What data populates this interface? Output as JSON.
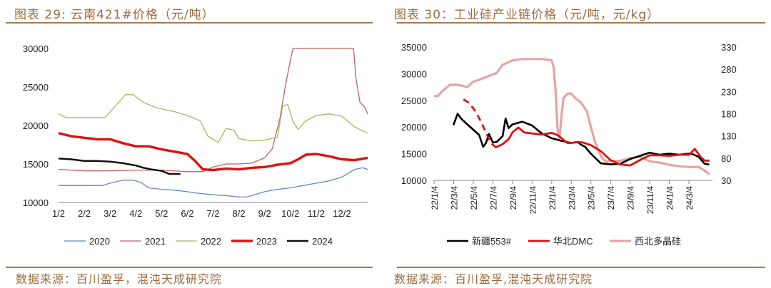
{
  "page": {
    "left_title": "图表 29:  云南421#价格（元/吨）",
    "right_title": "图表 30：工业硅产业链价格（元/吨，元/kg）",
    "left_source": "数据来源：百川盈孚，混沌天成研究院",
    "right_source": "数据来源：百川盈孚,混沌天成研究院"
  },
  "chart_data": [
    {
      "type": "line",
      "title": "云南421#价格（元/吨）",
      "x_labels": [
        "1/2",
        "2/2",
        "3/2",
        "4/2",
        "5/2",
        "6/2",
        "7/2",
        "8/2",
        "9/2",
        "10/2",
        "11/2",
        "12/2"
      ],
      "x_range": [
        0,
        12.0
      ],
      "ylim": [
        10000,
        30000
      ],
      "y_ticks": [
        10000,
        15000,
        20000,
        25000,
        30000
      ],
      "grid": false,
      "legend_position": "bottom",
      "colors": {
        "2020": "#5b8bc9",
        "2021": "#c06060",
        "2022": "#9cbc5c",
        "2023": "#e01010",
        "2024": "#111111"
      },
      "series": [
        {
          "name": "2020",
          "width": 1.3,
          "x": [
            0,
            1.7,
            2,
            2.5,
            2.9,
            3.2,
            3.5,
            4,
            4.5,
            5,
            5.4,
            6,
            6.5,
            7,
            7.3,
            7.6,
            8,
            8.5,
            9,
            9.5,
            10,
            10.5,
            11,
            11.5,
            11.8,
            12.0
          ],
          "y": [
            12200,
            12200,
            12500,
            12900,
            12900,
            12600,
            11900,
            11700,
            11600,
            11400,
            11200,
            11000,
            10900,
            10700,
            10700,
            11000,
            11400,
            11700,
            11900,
            12200,
            12500,
            12800,
            13300,
            14300,
            14500,
            14300
          ]
        },
        {
          "name": "2021",
          "width": 1.3,
          "x": [
            0,
            1,
            2,
            3,
            4,
            5,
            5.6,
            6,
            6.5,
            7,
            7.5,
            8,
            8.3,
            8.6,
            8.8,
            9,
            9.1,
            9.2,
            9.35,
            11.45,
            11.55,
            11.7,
            11.9,
            12.0
          ],
          "y": [
            14300,
            14100,
            14100,
            14200,
            14200,
            14000,
            14000,
            14600,
            15000,
            15000,
            15100,
            15800,
            17000,
            21000,
            25000,
            28500,
            30000,
            30000,
            30000,
            30000,
            26000,
            23000,
            22300,
            21500
          ]
        },
        {
          "name": "2022",
          "width": 1.3,
          "x": [
            0,
            0.3,
            1,
            1.8,
            2.2,
            2.6,
            2.9,
            3.3,
            3.8,
            4.5,
            5,
            5.5,
            5.8,
            6.2,
            6.5,
            6.8,
            7,
            7.5,
            8,
            8.5,
            8.7,
            8.9,
            9.1,
            9.3,
            9.6,
            10,
            10.5,
            11,
            11.5,
            12.0
          ],
          "y": [
            21500,
            21000,
            21000,
            21000,
            22500,
            24000,
            24000,
            23000,
            22300,
            21800,
            21300,
            20600,
            18600,
            17800,
            19600,
            19400,
            18300,
            18000,
            18100,
            18500,
            22500,
            22700,
            20500,
            19500,
            20600,
            21300,
            21500,
            21200,
            19800,
            19000
          ]
        },
        {
          "name": "2023",
          "width": 3.4,
          "x": [
            0,
            0.5,
            1,
            1.5,
            2,
            2.5,
            3,
            3.5,
            4,
            4.5,
            5,
            5.3,
            5.6,
            6,
            6.5,
            7,
            7.5,
            8,
            8.5,
            9,
            9.3,
            9.6,
            10,
            10.5,
            11,
            11.5,
            12.0
          ],
          "y": [
            19000,
            18600,
            18400,
            18200,
            18200,
            17700,
            17300,
            17300,
            16900,
            16600,
            16300,
            15400,
            14300,
            14200,
            14400,
            14300,
            14500,
            14600,
            14900,
            15100,
            15600,
            16200,
            16300,
            16000,
            15600,
            15500,
            15800
          ]
        },
        {
          "name": "2024",
          "width": 2.5,
          "x": [
            0,
            0.5,
            1,
            1.5,
            2,
            2.5,
            3,
            3.3,
            3.6,
            4,
            4.3,
            4.7
          ],
          "y": [
            15700,
            15600,
            15400,
            15400,
            15300,
            15100,
            14800,
            14500,
            14300,
            14100,
            13700,
            13700
          ]
        }
      ]
    },
    {
      "type": "line",
      "title": "工业硅产业链价格（元/吨，元/kg）",
      "x_labels": [
        "22/1/4",
        "22/3/4",
        "22/5/4",
        "22/7/4",
        "22/9/4",
        "22/11/4",
        "23/1/4",
        "23/3/4",
        "23/5/4",
        "23/7/4",
        "23/9/4",
        "23/11/4",
        "24/1/4",
        "24/3/4"
      ],
      "x_range": [
        0,
        14.2
      ],
      "ylim": [
        10000,
        35000
      ],
      "y_ticks": [
        10000,
        15000,
        20000,
        25000,
        30000,
        35000
      ],
      "y2lim": [
        30,
        330
      ],
      "y2_ticks": [
        30,
        80,
        130,
        180,
        230,
        280,
        330
      ],
      "grid": false,
      "legend_position": "bottom",
      "colors": {
        "新疆553#": "#000000",
        "华北DMC": "#e01010",
        "西北多晶硅": "#e6a4a4"
      },
      "series": [
        {
          "name": "新疆553#",
          "axis": "left",
          "width": 2.6,
          "x": [
            1,
            1.2,
            1.4,
            1.7,
            2,
            2.3,
            2.5,
            2.65,
            2.8,
            3.0,
            3.2,
            3.5,
            3.65,
            3.8,
            4,
            4.5,
            5,
            5.5,
            6,
            6.5,
            7,
            7.3,
            7.5,
            7.7,
            8,
            8.5,
            9,
            9.5,
            10,
            10.5,
            11,
            11.5,
            12,
            12.5,
            13,
            13.2,
            13.5,
            13.8,
            14.0
          ],
          "y": [
            20500,
            22500,
            21500,
            20500,
            19500,
            18500,
            16300,
            17000,
            18700,
            17100,
            17200,
            18300,
            21600,
            19800,
            20500,
            21000,
            20300,
            18800,
            17900,
            17400,
            17000,
            17200,
            16700,
            16300,
            15000,
            13200,
            13000,
            13100,
            14000,
            14600,
            15200,
            14800,
            15000,
            14800,
            15000,
            14900,
            14400,
            13100,
            13000
          ]
        },
        {
          "name": "华北DMC",
          "axis": "left",
          "width": 2.8,
          "x": [
            6.3,
            6.8,
            7,
            7.3,
            7.6,
            8,
            8.5,
            9,
            9.5,
            10,
            10.5,
            11,
            11.5,
            12,
            12.5,
            13,
            13.3,
            13.6,
            13.8,
            14.0
          ],
          "y": [
            18500,
            17000,
            17000,
            17200,
            17100,
            16600,
            15500,
            13800,
            13000,
            12800,
            13800,
            14700,
            14700,
            14600,
            14800,
            14800,
            15900,
            14400,
            13700,
            13700
          ]
        },
        {
          "name": "华北DMC",
          "axis": "left",
          "width": 2.8,
          "dash": "9 6",
          "x": [
            1.5,
            1.8,
            2.1,
            2.4,
            2.7,
            2.9,
            3.15
          ],
          "y": [
            25200,
            24500,
            23000,
            21000,
            18500,
            17000,
            16200
          ]
        },
        {
          "name": "华北DMC",
          "axis": "left",
          "width": 2.8,
          "x": [
            3.15,
            3.5,
            3.8,
            4,
            4.3,
            4.6,
            5,
            5.5,
            6,
            6.3
          ],
          "y": [
            16200,
            16800,
            17700,
            19000,
            19900,
            19000,
            18800,
            18600,
            18900,
            18500
          ]
        },
        {
          "name": "西北多晶硅",
          "axis": "right",
          "width": 3.2,
          "x": [
            0,
            0.2,
            0.4,
            0.8,
            1.2,
            1.4,
            1.7,
            2,
            2.4,
            2.8,
            3.2,
            3.5,
            4,
            4.5,
            5,
            5.5,
            6,
            6.1,
            6.2,
            6.3,
            6.4,
            6.5,
            6.6,
            6.8,
            7,
            7.2,
            7.5,
            7.8,
            8,
            8.2,
            8.4,
            8.6,
            8.8,
            9,
            9.5,
            10,
            10.5,
            11,
            11.5,
            12,
            12.5,
            13,
            13.5,
            13.8,
            14.0
          ],
          "y": [
            220,
            220,
            230,
            245,
            245,
            243,
            240,
            252,
            258,
            265,
            272,
            290,
            300,
            303,
            303,
            303,
            300,
            285,
            230,
            145,
            125,
            175,
            215,
            225,
            225,
            215,
            205,
            185,
            150,
            118,
            95,
            78,
            72,
            74,
            74,
            80,
            83,
            73,
            70,
            65,
            62,
            60,
            60,
            52,
            45
          ]
        }
      ]
    }
  ]
}
